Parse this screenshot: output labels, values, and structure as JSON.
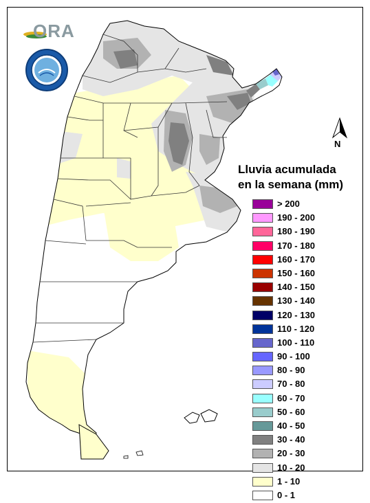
{
  "legend": {
    "title_line1": "Lluvia acumulada",
    "title_line2": "en la semana (mm)",
    "items": [
      {
        "label": "> 200",
        "color": "#990099"
      },
      {
        "label": "190 - 200",
        "color": "#ff99ff"
      },
      {
        "label": "180 - 190",
        "color": "#ff6699"
      },
      {
        "label": "170 - 180",
        "color": "#ff0066"
      },
      {
        "label": "160 - 170",
        "color": "#ff0000"
      },
      {
        "label": "150 - 160",
        "color": "#cc3300"
      },
      {
        "label": "140 - 150",
        "color": "#990000"
      },
      {
        "label": "130 - 140",
        "color": "#663300"
      },
      {
        "label": "120 - 130",
        "color": "#000066"
      },
      {
        "label": "110 - 120",
        "color": "#003399"
      },
      {
        "label": "100 - 110",
        "color": "#6666cc"
      },
      {
        "label": "90 - 100",
        "color": "#6666ff"
      },
      {
        "label": "80 - 90",
        "color": "#9999ff"
      },
      {
        "label": "70 - 80",
        "color": "#ccccff"
      },
      {
        "label": "60 - 70",
        "color": "#99ffff"
      },
      {
        "label": "50 - 60",
        "color": "#99cccc"
      },
      {
        "label": "40 - 50",
        "color": "#669999"
      },
      {
        "label": "30 - 40",
        "color": "#808080"
      },
      {
        "label": "20 - 30",
        "color": "#b2b2b2"
      },
      {
        "label": "10 - 20",
        "color": "#e5e5e5"
      },
      {
        "label": "1 - 10",
        "color": "#ffffcc"
      },
      {
        "label": "0 - 1",
        "color": "#ffffff"
      }
    ]
  },
  "logos": {
    "ora_text": "ORA"
  },
  "north_arrow": {
    "label": "N"
  },
  "map_colors": {
    "outline": "#000000",
    "province_border": "#333333"
  }
}
